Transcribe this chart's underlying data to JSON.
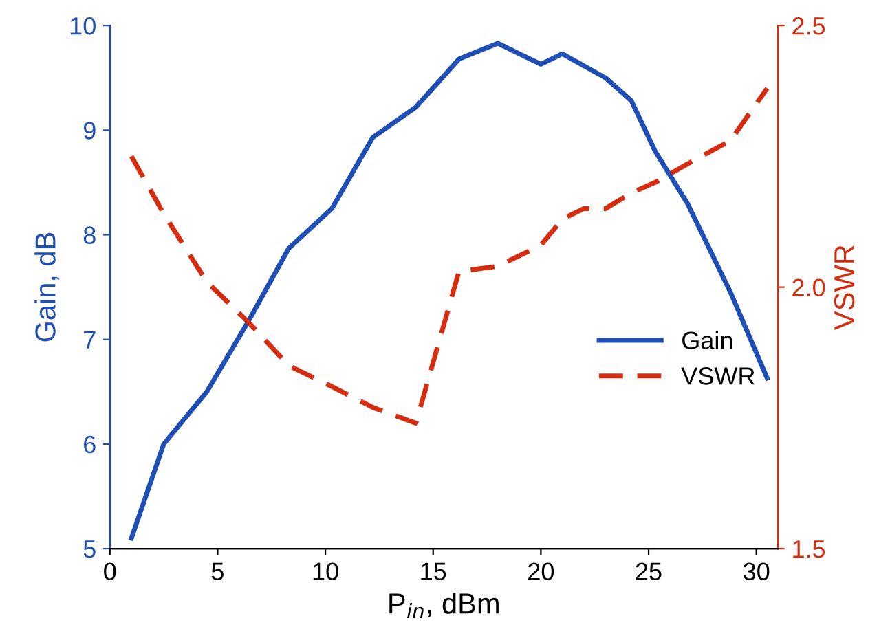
{
  "chart_data": {
    "type": "line",
    "xlabel": "P$_{in}$, dBm",
    "ylabel": "Gain, dB",
    "y2label": "VSWR",
    "xlim": [
      0,
      31
    ],
    "xticks": [
      0,
      5,
      10,
      15,
      20,
      25,
      30
    ],
    "ylim": [
      5,
      10
    ],
    "yticks": [
      5,
      6,
      7,
      8,
      9,
      10
    ],
    "y2lim": [
      1.5,
      2.5
    ],
    "y2ticks": [
      1.5,
      {
        "value": 2,
        "label": "2.0"
      },
      2.5
    ],
    "grid": false,
    "legend": "right",
    "marker": "none",
    "series": [
      {
        "name": "Gain",
        "color": "#1f4fb4",
        "line_style": "solid",
        "x": [
          1,
          2.5,
          4.5,
          6.5,
          8.3,
          10.3,
          12.2,
          14.2,
          16.2,
          18,
          20,
          21,
          23,
          24.2,
          25.3,
          26.8,
          28.8,
          30.5
        ],
        "values": [
          5.1,
          6.0,
          6.5,
          7.2,
          7.87,
          8.25,
          8.93,
          9.22,
          9.68,
          9.83,
          9.63,
          9.73,
          9.5,
          9.28,
          8.8,
          8.3,
          7.45,
          6.63
        ]
      },
      {
        "name": "VSWR",
        "color": "#d62c10",
        "line_style": "dashed",
        "axis": "y2",
        "x": [
          1,
          2.5,
          4.5,
          6.5,
          8.3,
          10.3,
          12.2,
          14.2,
          16.2,
          18,
          20,
          21,
          22,
          23,
          24.2,
          25.3,
          27,
          28.8,
          30.5
        ],
        "values": [
          2.25,
          2.14,
          2.01,
          1.93,
          1.85,
          1.81,
          1.77,
          1.74,
          2.03,
          2.04,
          2.08,
          2.13,
          2.15,
          2.15,
          2.18,
          2.2,
          2.24,
          2.28,
          2.38
        ]
      }
    ]
  }
}
